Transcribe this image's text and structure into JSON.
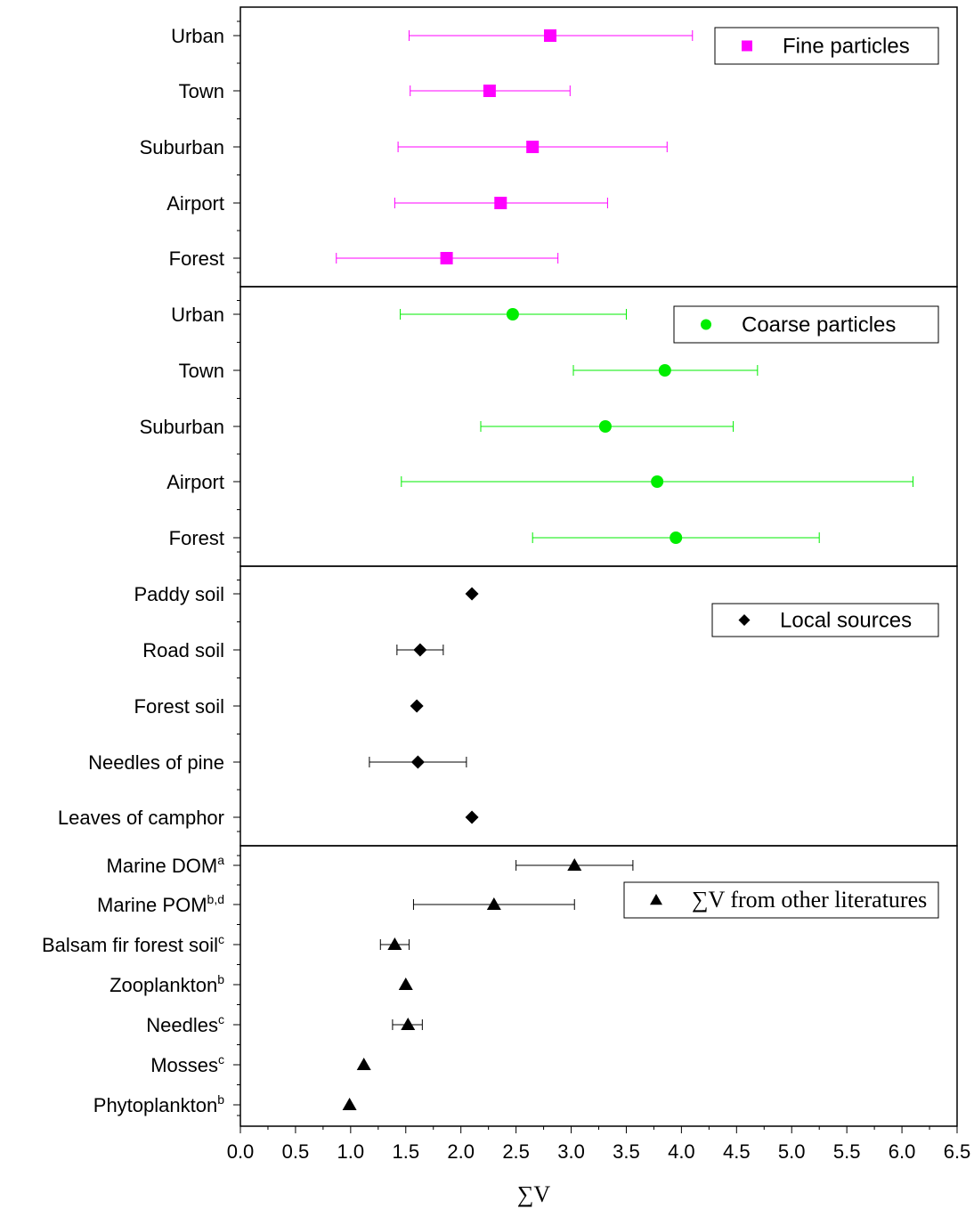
{
  "chart_data": {
    "type": "scatter",
    "xlabel": "∑V",
    "xlim": [
      0,
      6.5
    ],
    "xticks": [
      "0.0",
      "0.5",
      "1.0",
      "1.5",
      "2.0",
      "2.5",
      "3.0",
      "3.5",
      "4.0",
      "4.5",
      "5.0",
      "5.5",
      "6.0",
      "6.5"
    ],
    "grid": false,
    "legend_position": "top-right",
    "panels": [
      {
        "legend": "Fine particles",
        "marker": "square",
        "color": "#ff00ff",
        "points": [
          {
            "label": "Urban",
            "sup": "",
            "value": 2.81,
            "low": 1.53,
            "high": 4.1
          },
          {
            "label": "Town",
            "sup": "",
            "value": 2.26,
            "low": 1.54,
            "high": 2.99
          },
          {
            "label": "Suburban",
            "sup": "",
            "value": 2.65,
            "low": 1.43,
            "high": 3.87
          },
          {
            "label": "Airport",
            "sup": "",
            "value": 2.36,
            "low": 1.4,
            "high": 3.33
          },
          {
            "label": "Forest",
            "sup": "",
            "value": 1.87,
            "low": 0.87,
            "high": 2.88
          }
        ]
      },
      {
        "legend": "Coarse particles",
        "marker": "circle",
        "color": "#00ee00",
        "points": [
          {
            "label": "Urban",
            "sup": "",
            "value": 2.47,
            "low": 1.45,
            "high": 3.5
          },
          {
            "label": "Town",
            "sup": "",
            "value": 3.85,
            "low": 3.02,
            "high": 4.69
          },
          {
            "label": "Suburban",
            "sup": "",
            "value": 3.31,
            "low": 2.18,
            "high": 4.47
          },
          {
            "label": "Airport",
            "sup": "",
            "value": 3.78,
            "low": 1.46,
            "high": 6.1
          },
          {
            "label": "Forest",
            "sup": "",
            "value": 3.95,
            "low": 2.65,
            "high": 5.25
          }
        ]
      },
      {
        "legend": "Local sources",
        "marker": "diamond",
        "color": "#000000",
        "points": [
          {
            "label": "Paddy soil",
            "sup": "",
            "value": 2.1,
            "low": null,
            "high": null
          },
          {
            "label": "Road soil",
            "sup": "",
            "value": 1.63,
            "low": 1.42,
            "high": 1.84
          },
          {
            "label": "Forest soil",
            "sup": "",
            "value": 1.6,
            "low": null,
            "high": null
          },
          {
            "label": "Needles of pine",
            "sup": "",
            "value": 1.61,
            "low": 1.17,
            "high": 2.05
          },
          {
            "label": "Leaves of camphor",
            "sup": "",
            "value": 2.1,
            "low": null,
            "high": null
          }
        ]
      },
      {
        "legend": "∑V from other literatures",
        "marker": "triangle",
        "color": "#000000",
        "points": [
          {
            "label": "Marine DOM",
            "sup": "a",
            "value": 3.03,
            "low": 2.5,
            "high": 3.56
          },
          {
            "label": "Marine POM",
            "sup": "b,d",
            "value": 2.3,
            "low": 1.57,
            "high": 3.03
          },
          {
            "label": "Balsam fir forest soil",
            "sup": "c",
            "value": 1.4,
            "low": 1.27,
            "high": 1.53
          },
          {
            "label": "Zooplankton",
            "sup": "b",
            "value": 1.5,
            "low": null,
            "high": null
          },
          {
            "label": "Needles",
            "sup": "c",
            "value": 1.52,
            "low": 1.38,
            "high": 1.65
          },
          {
            "label": "Mosses",
            "sup": "c",
            "value": 1.12,
            "low": null,
            "high": null
          },
          {
            "label": "Phytoplankton",
            "sup": "b",
            "value": 0.99,
            "low": null,
            "high": null
          }
        ]
      }
    ]
  }
}
